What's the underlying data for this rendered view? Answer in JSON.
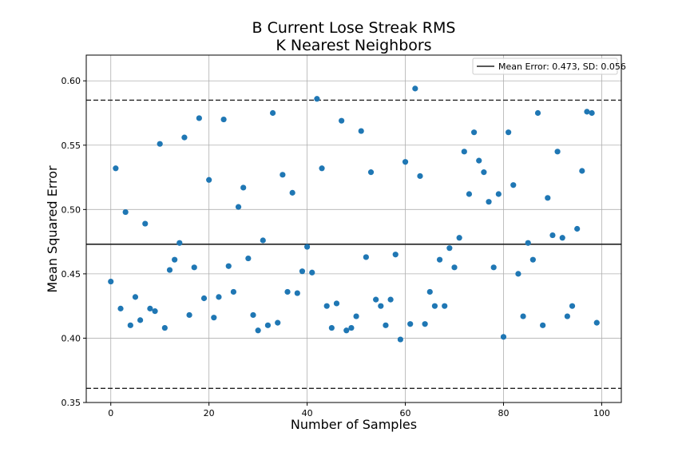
{
  "chart_data": {
    "type": "scatter",
    "title": "B Current Lose Streak RMS",
    "subtitle": "K Nearest Neighbors",
    "xlabel": "Number of Samples",
    "ylabel": "Mean Squared Error",
    "xlim": [
      -5,
      104
    ],
    "ylim": [
      0.35,
      0.62
    ],
    "xticks": [
      0,
      20,
      40,
      60,
      80,
      100
    ],
    "yticks": [
      0.35,
      0.4,
      0.45,
      0.5,
      0.55,
      0.6
    ],
    "xtick_labels": [
      "0",
      "20",
      "40",
      "60",
      "80",
      "100"
    ],
    "ytick_labels": [
      "0.35",
      "0.40",
      "0.45",
      "0.50",
      "0.55",
      "0.60"
    ],
    "grid": true,
    "legend_position": "top-right",
    "legend_label": "Mean Error: 0.473, SD: 0.056",
    "mean": 0.473,
    "upper_band": 0.585,
    "lower_band": 0.361,
    "point_color": "#1f77b4",
    "x": [
      0,
      1,
      2,
      3,
      4,
      5,
      6,
      7,
      8,
      9,
      10,
      11,
      12,
      13,
      14,
      15,
      16,
      17,
      18,
      19,
      20,
      21,
      22,
      23,
      24,
      25,
      26,
      27,
      28,
      29,
      30,
      31,
      32,
      33,
      34,
      35,
      36,
      37,
      38,
      39,
      40,
      41,
      42,
      43,
      44,
      45,
      46,
      47,
      48,
      49,
      50,
      51,
      52,
      53,
      54,
      55,
      56,
      57,
      58,
      59,
      60,
      61,
      62,
      63,
      64,
      65,
      66,
      67,
      68,
      69,
      70,
      71,
      72,
      73,
      74,
      75,
      76,
      77,
      78,
      79,
      80,
      81,
      82,
      83,
      84,
      85,
      86,
      87,
      88,
      89,
      90,
      91,
      92,
      93,
      94,
      95,
      96,
      97,
      98,
      99
    ],
    "y": [
      0.444,
      0.532,
      0.423,
      0.498,
      0.41,
      0.432,
      0.414,
      0.489,
      0.423,
      0.421,
      0.551,
      0.408,
      0.453,
      0.461,
      0.474,
      0.556,
      0.418,
      0.455,
      0.571,
      0.431,
      0.523,
      0.416,
      0.432,
      0.57,
      0.456,
      0.436,
      0.502,
      0.517,
      0.462,
      0.418,
      0.406,
      0.476,
      0.41,
      0.575,
      0.412,
      0.527,
      0.436,
      0.513,
      0.435,
      0.452,
      0.471,
      0.451,
      0.586,
      0.532,
      0.425,
      0.408,
      0.427,
      0.569,
      0.406,
      0.408,
      0.417,
      0.561,
      0.463,
      0.529,
      0.43,
      0.425,
      0.41,
      0.43,
      0.465,
      0.399,
      0.537,
      0.411,
      0.594,
      0.526,
      0.411,
      0.436,
      0.425,
      0.461,
      0.425,
      0.47,
      0.455,
      0.478,
      0.545,
      0.512,
      0.56,
      0.538,
      0.529,
      0.506,
      0.455,
      0.512,
      0.401,
      0.56,
      0.519,
      0.45,
      0.417,
      0.474,
      0.461,
      0.575,
      0.41,
      0.509,
      0.48,
      0.545,
      0.478,
      0.417,
      0.425,
      0.485,
      0.53,
      0.576,
      0.575,
      0.412
    ]
  }
}
